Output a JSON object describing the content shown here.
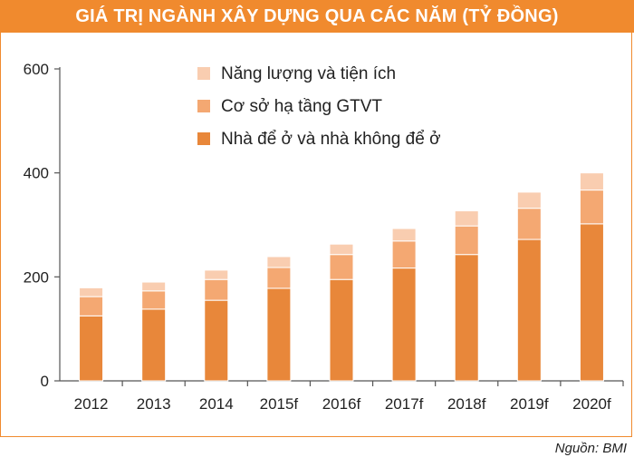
{
  "header": {
    "title": "GIÁ TRỊ NGÀNH XÂY DỰNG QUA CÁC NĂM (TỶ ĐỒNG)"
  },
  "footer": {
    "source": "Nguồn: BMI"
  },
  "chart_data": {
    "type": "bar",
    "stacked": true,
    "categories": [
      "2012",
      "2013",
      "2014",
      "2015f",
      "2016f",
      "2017f",
      "2018f",
      "2019f",
      "2020f"
    ],
    "series": [
      {
        "name": "Nhà để ở và nhà không để ở",
        "color": "#e8873a",
        "values": [
          125,
          138,
          155,
          178,
          195,
          217,
          243,
          272,
          302
        ]
      },
      {
        "name": "Cơ sở hạ tầng GTVT",
        "color": "#f4a872",
        "values": [
          37,
          35,
          40,
          40,
          48,
          52,
          55,
          60,
          65
        ]
      },
      {
        "name": "Năng lượng và tiện ích",
        "color": "#f9cdb0",
        "values": [
          17,
          17,
          18,
          21,
          20,
          24,
          29,
          31,
          33
        ]
      }
    ],
    "ylim": [
      0,
      600
    ],
    "yticks": [
      0,
      200,
      400,
      600
    ],
    "legend_position": "top-left",
    "grid": false
  }
}
